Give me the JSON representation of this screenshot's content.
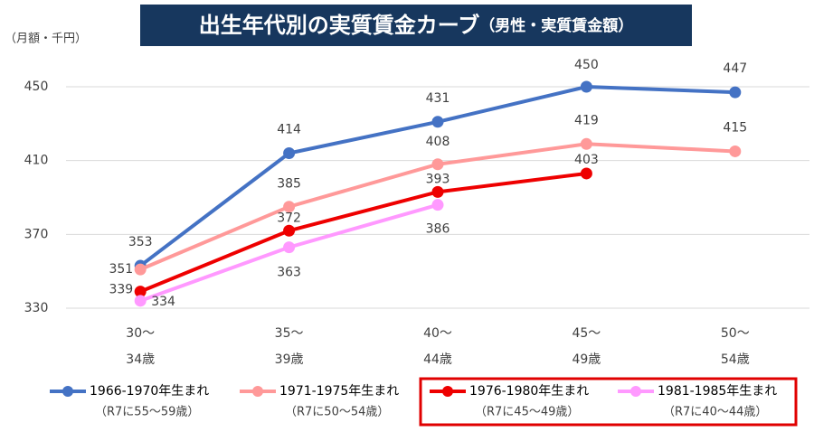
{
  "chart_data": {
    "type": "line",
    "title": "出生年代別の実質賃金カーブ",
    "subtitle": "（男性・実質賃金額）",
    "y_label": "（月額・千円）",
    "categories": [
      [
        "30～",
        "34歳"
      ],
      [
        "35～",
        "39歳"
      ],
      [
        "40～",
        "44歳"
      ],
      [
        "45～",
        "49歳"
      ],
      [
        "50～",
        "54歳"
      ]
    ],
    "ylim": [
      330,
      450
    ],
    "yticks": [
      330,
      370,
      410,
      450
    ],
    "grid": true,
    "series": [
      {
        "name": "1966-1970年生まれ",
        "note": "（R7に55～59歳）",
        "color": "#4472c4",
        "values": [
          353,
          414,
          431,
          450,
          447
        ]
      },
      {
        "name": "1971-1975年生まれ",
        "note": "（R7に50～54歳）",
        "color": "#ff9999",
        "values": [
          351,
          385,
          408,
          419,
          415
        ]
      },
      {
        "name": "1976-1980年生まれ",
        "note": "（R7に45～49歳）",
        "color": "#ee0000",
        "values": [
          339,
          372,
          393,
          403,
          null
        ],
        "highlighted": true
      },
      {
        "name": "1981-1985年生まれ",
        "note": "（R7に40～44歳）",
        "color": "#ff99ff",
        "values": [
          334,
          363,
          386,
          null,
          null
        ],
        "highlighted": true
      }
    ]
  }
}
